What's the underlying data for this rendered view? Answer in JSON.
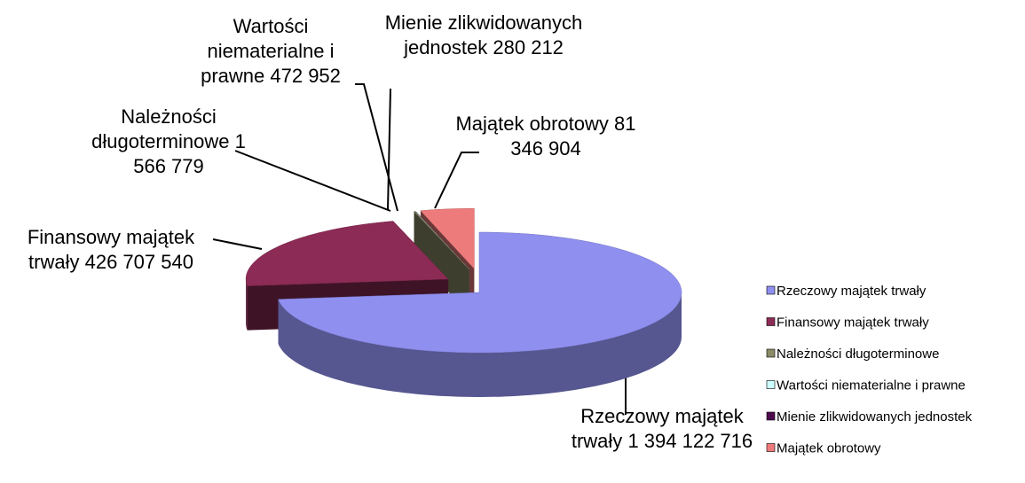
{
  "chart_data": {
    "type": "pie3d",
    "categories": [
      "Rzeczowy majątek trwały",
      "Finansowy majątek trwały",
      "Należności długoterminowe",
      "Wartości niematerialne i prawne",
      "Mienie zlikwidowanych jednostek",
      "Majątek obrotowy"
    ],
    "values": [
      1394122716,
      426707540,
      1566779,
      472952,
      280212,
      81346904
    ],
    "value_labels": [
      "1 394 122 716",
      "426 707 540",
      "1 566 779",
      "472 952",
      "280 212",
      "81 346 904"
    ],
    "colors": [
      "#8f8ff0",
      "#8c2b55",
      "#8a8a66",
      "#ccffff",
      "#4d0a4d",
      "#ee7b7b"
    ],
    "legend": "right"
  }
}
